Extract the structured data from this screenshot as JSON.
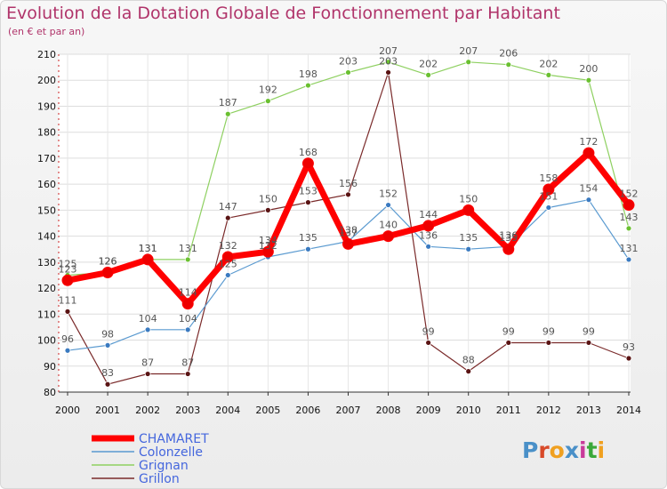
{
  "header": {
    "title": "Evolution de la Dotation Globale de Fonctionnement par Habitant",
    "subtitle": "(en € et par an)"
  },
  "logo": {
    "letters": [
      "P",
      "r",
      "o",
      "x",
      "i",
      "t",
      "i"
    ],
    "colors": [
      "#4a90c8",
      "#d84a2a",
      "#f0a020",
      "#4a90c8",
      "#c83a9a",
      "#3aa83a",
      "#f0a020"
    ]
  },
  "chart_data": {
    "type": "line",
    "title": "Evolution de la Dotation Globale de Fonctionnement par Habitant",
    "subtitle": "(en € et par an)",
    "xlabel": "",
    "ylabel": "",
    "x": [
      "2000",
      "2001",
      "2002",
      "2003",
      "2004",
      "2005",
      "2006",
      "2007",
      "2008",
      "2009",
      "2010",
      "2011",
      "2012",
      "2013",
      "2014"
    ],
    "ylim": [
      80,
      210
    ],
    "yticks": [
      80,
      90,
      100,
      110,
      120,
      130,
      140,
      150,
      160,
      170,
      180,
      190,
      200,
      210
    ],
    "grid": true,
    "legend_position": "bottom-left",
    "series": [
      {
        "name": "Grillon",
        "color": "#7a2a2a",
        "marker": "#5a1414",
        "width": 1.2,
        "values": [
          111,
          83,
          87,
          87,
          147,
          150,
          153,
          156,
          203,
          99,
          88,
          99,
          99,
          99,
          93
        ]
      },
      {
        "name": "Colonzelle",
        "color": "#5a9ad0",
        "marker": "#3a7ac0",
        "width": 1.2,
        "values": [
          96,
          98,
          104,
          104,
          125,
          132,
          135,
          138,
          152,
          136,
          135,
          136,
          151,
          154,
          131
        ]
      },
      {
        "name": "Grignan",
        "color": "#8ed060",
        "marker": "#6ac030",
        "width": 1.2,
        "values": [
          125,
          126,
          131,
          131,
          187,
          192,
          198,
          203,
          207,
          202,
          207,
          206,
          202,
          200,
          143
        ]
      },
      {
        "name": "CHAMARET",
        "color": "#ff0000",
        "marker": "#ee0000",
        "width": 7,
        "values": [
          123,
          126,
          131,
          114,
          132,
          134,
          168,
          137,
          140,
          144,
          150,
          135,
          158,
          172,
          152
        ]
      }
    ],
    "legend": [
      {
        "name": "CHAMARET",
        "color": "#ff0000",
        "text_color": "#4466dd",
        "width": 7
      },
      {
        "name": "Colonzelle",
        "color": "#5a9ad0",
        "text_color": "#4466dd",
        "width": 1.5
      },
      {
        "name": "Grignan",
        "color": "#8ed060",
        "text_color": "#4466dd",
        "width": 1.5
      },
      {
        "name": "Grillon",
        "color": "#7a2a2a",
        "text_color": "#4466dd",
        "width": 1.5
      }
    ]
  }
}
